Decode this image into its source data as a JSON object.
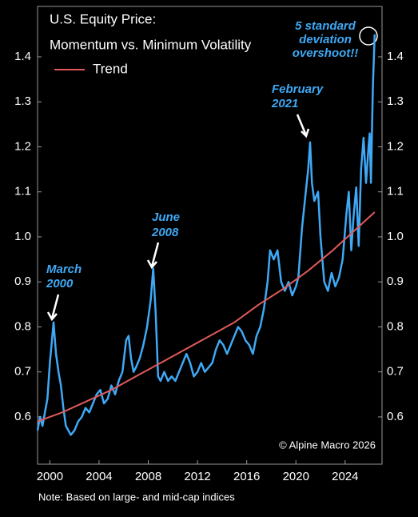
{
  "chart_data": {
    "type": "line",
    "title_lines": [
      "U.S. Equity Price:",
      "Momentum vs. Minimum Volatility"
    ],
    "xlim": [
      1999,
      2027
    ],
    "xticks": [
      2000,
      2004,
      2008,
      2012,
      2016,
      2020,
      2024
    ],
    "ylim": [
      0.495,
      1.512
    ],
    "yticks": [
      0.6,
      0.7,
      0.8,
      0.9,
      {
        "value": 1,
        "label": "1.0"
      },
      1.1,
      1.2,
      1.3,
      1.4
    ],
    "y2lim": [
      0.495,
      1.512
    ],
    "y2ticks": [
      0.6,
      0.7,
      0.8,
      0.9,
      {
        "value": 1,
        "label": "1.0"
      },
      1.1,
      1.2,
      1.3,
      1.4
    ],
    "grid": false,
    "legend": "top-left",
    "series": [
      {
        "color": "#3fa9f5",
        "x": [
          1999.0,
          1999.2,
          1999.4,
          1999.6,
          1999.8,
          2000.0,
          2000.2,
          2000.3,
          2000.5,
          2000.7,
          2000.9,
          2001.1,
          2001.3,
          2001.5,
          2001.7,
          2002.0,
          2002.3,
          2002.6,
          2002.9,
          2003.2,
          2003.5,
          2003.8,
          2004.1,
          2004.4,
          2004.7,
          2005.0,
          2005.3,
          2005.6,
          2005.9,
          2006.2,
          2006.4,
          2006.6,
          2006.8,
          2007.0,
          2007.3,
          2007.6,
          2007.9,
          2008.2,
          2008.4,
          2008.6,
          2008.8,
          2009.0,
          2009.3,
          2009.6,
          2009.9,
          2010.2,
          2010.5,
          2010.8,
          2011.1,
          2011.4,
          2011.7,
          2012.0,
          2012.3,
          2012.6,
          2012.9,
          2013.2,
          2013.5,
          2013.8,
          2014.1,
          2014.4,
          2014.7,
          2015.0,
          2015.3,
          2015.6,
          2015.9,
          2016.2,
          2016.5,
          2016.8,
          2017.1,
          2017.4,
          2017.7,
          2017.9,
          2018.2,
          2018.5,
          2018.8,
          2019.1,
          2019.4,
          2019.7,
          2020.0,
          2020.2,
          2020.5,
          2020.8,
          2021.0,
          2021.15,
          2021.3,
          2021.5,
          2021.8,
          2022.0,
          2022.3,
          2022.6,
          2022.9,
          2023.2,
          2023.5,
          2023.8,
          2024.1,
          2024.3,
          2024.5,
          2024.7,
          2024.9,
          2025.1,
          2025.3,
          2025.5,
          2025.7,
          2025.9,
          2026.0,
          2026.1,
          2026.25,
          2026.4
        ],
        "values": [
          0.57,
          0.6,
          0.58,
          0.61,
          0.64,
          0.72,
          0.78,
          0.81,
          0.74,
          0.7,
          0.67,
          0.62,
          0.58,
          0.57,
          0.56,
          0.57,
          0.59,
          0.6,
          0.62,
          0.61,
          0.63,
          0.65,
          0.66,
          0.63,
          0.64,
          0.67,
          0.65,
          0.68,
          0.7,
          0.77,
          0.78,
          0.73,
          0.7,
          0.71,
          0.73,
          0.76,
          0.8,
          0.86,
          0.93,
          0.83,
          0.69,
          0.68,
          0.7,
          0.68,
          0.69,
          0.68,
          0.7,
          0.72,
          0.74,
          0.72,
          0.69,
          0.7,
          0.72,
          0.7,
          0.71,
          0.72,
          0.75,
          0.77,
          0.76,
          0.74,
          0.76,
          0.78,
          0.8,
          0.79,
          0.77,
          0.76,
          0.74,
          0.78,
          0.8,
          0.84,
          0.9,
          0.97,
          0.95,
          0.97,
          0.9,
          0.88,
          0.9,
          0.87,
          0.89,
          0.91,
          1.02,
          1.1,
          1.15,
          1.21,
          1.12,
          1.08,
          1.1,
          1.0,
          0.9,
          0.88,
          0.92,
          0.89,
          0.91,
          0.95,
          1.05,
          1.1,
          0.97,
          1.05,
          1.11,
          0.98,
          1.15,
          1.22,
          1.12,
          1.2,
          1.23,
          1.12,
          1.33,
          1.45
        ]
      },
      {
        "name": "Trend",
        "color": "#e05a5a",
        "x": [
          1999,
          2001,
          2003,
          2005,
          2007,
          2009,
          2011,
          2013,
          2015,
          2017,
          2019,
          2021,
          2023,
          2025,
          2026.4
        ],
        "values": [
          0.59,
          0.61,
          0.635,
          0.66,
          0.69,
          0.72,
          0.75,
          0.78,
          0.81,
          0.85,
          0.885,
          0.925,
          0.97,
          1.02,
          1.055
        ]
      }
    ],
    "annotations": [
      {
        "lines": [
          "March",
          "2000"
        ]
      },
      {
        "lines": [
          "June",
          "2008"
        ]
      },
      {
        "lines": [
          "February",
          "2021"
        ]
      },
      {
        "lines": [
          "5 standard",
          "deviation",
          "overshoot!!"
        ]
      }
    ],
    "credit": "© Alpine Macro 2026",
    "note": "Note: Based on large- and mid-cap indices"
  }
}
